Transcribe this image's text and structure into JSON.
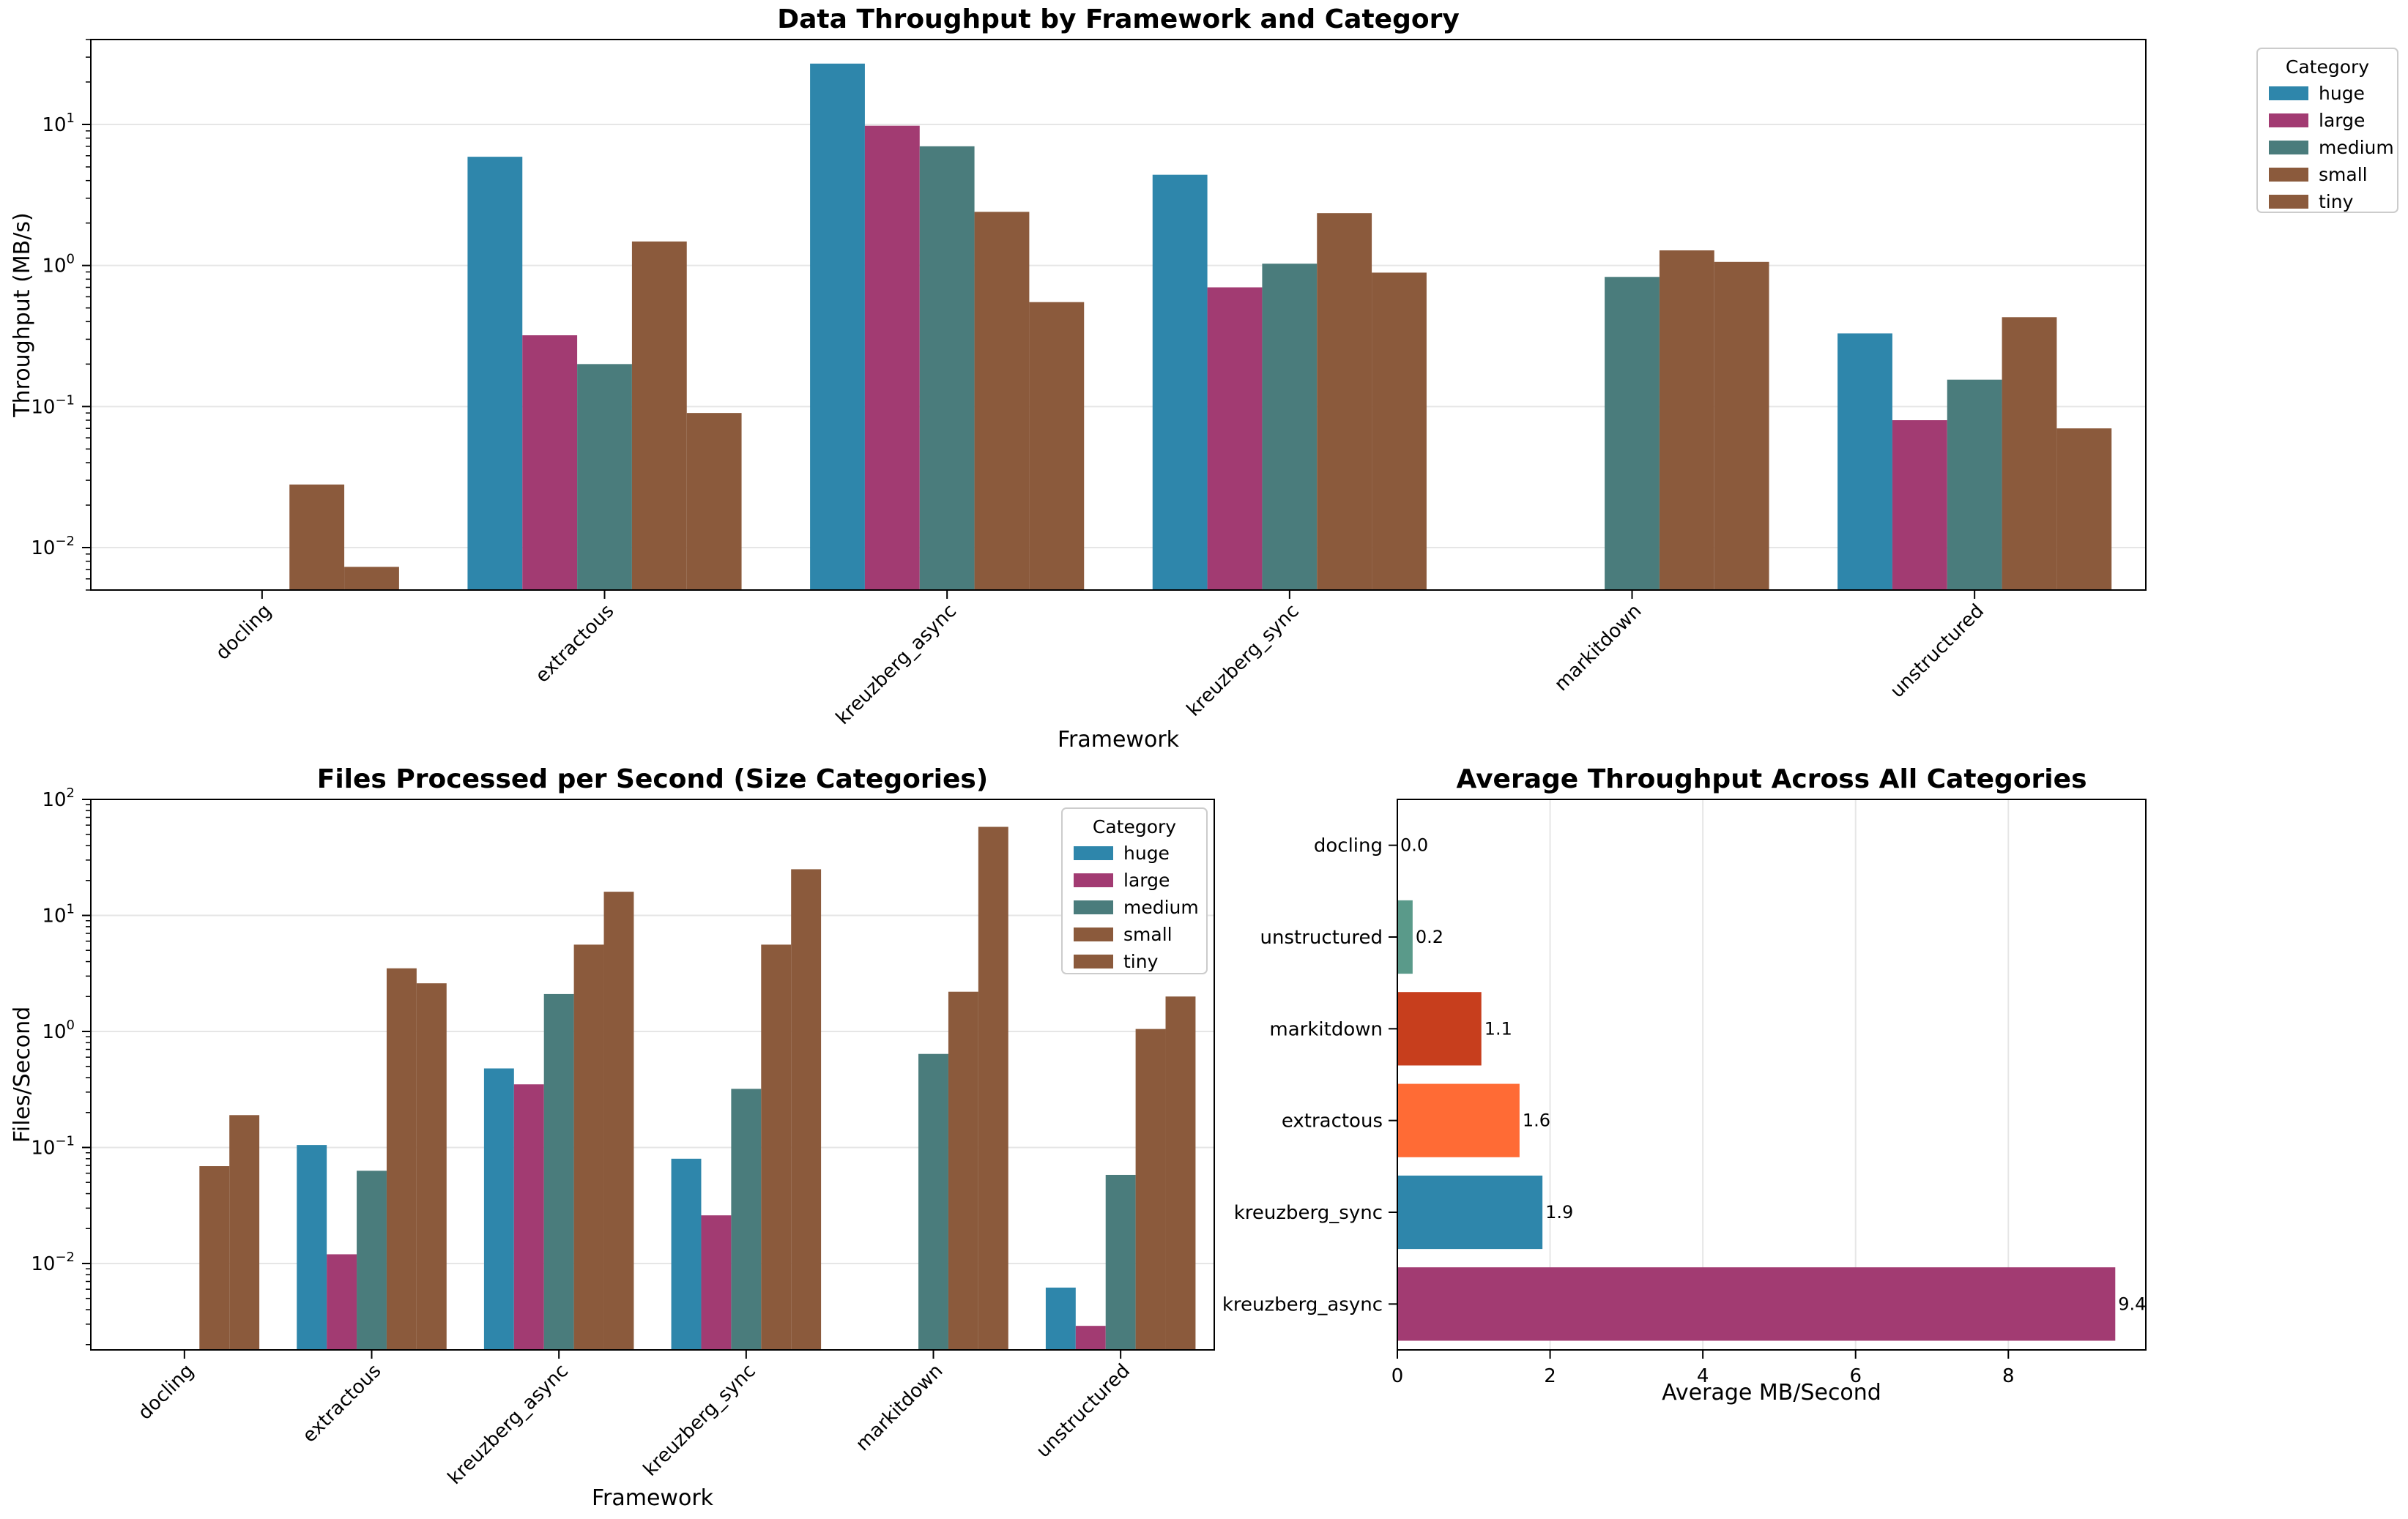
{
  "colors": {
    "huge": "#2E86AB",
    "large": "#A23B72",
    "medium": "#4A7C7C",
    "small": "#8B5A3C",
    "tiny": "#8B5A3C"
  },
  "chart_data": [
    {
      "type": "bar",
      "title": "Data Throughput by Framework and Category",
      "xlabel": "Framework",
      "ylabel": "Throughput (MB/s)",
      "yscale": "log",
      "ylim": [
        0.005,
        40
      ],
      "categories": [
        "docling",
        "extractous",
        "kreuzberg_async",
        "kreuzberg_sync",
        "markitdown",
        "unstructured"
      ],
      "legend": {
        "title": "Category",
        "placement": "outside-upper-right"
      },
      "grid": "y",
      "series": [
        {
          "name": "huge",
          "values": [
            null,
            5.9,
            27.0,
            4.4,
            null,
            0.33
          ]
        },
        {
          "name": "large",
          "values": [
            null,
            0.32,
            9.8,
            0.7,
            null,
            0.08
          ]
        },
        {
          "name": "medium",
          "values": [
            null,
            0.2,
            7.0,
            1.03,
            0.83,
            0.155
          ]
        },
        {
          "name": "small",
          "values": [
            0.028,
            1.48,
            2.4,
            2.35,
            1.28,
            0.43
          ]
        },
        {
          "name": "tiny",
          "values": [
            0.0073,
            0.09,
            0.55,
            0.89,
            1.06,
            0.07
          ]
        }
      ]
    },
    {
      "type": "bar",
      "title": "Files Processed per Second (Size Categories)",
      "xlabel": "Framework",
      "ylabel": "Files/Second",
      "yscale": "log",
      "ylim": [
        0.0018,
        100
      ],
      "categories": [
        "docling",
        "extractous",
        "kreuzberg_async",
        "kreuzberg_sync",
        "markitdown",
        "unstructured"
      ],
      "legend": {
        "title": "Category",
        "placement": "upper-right"
      },
      "grid": "y",
      "series": [
        {
          "name": "huge",
          "values": [
            null,
            0.105,
            0.48,
            0.08,
            null,
            0.0062
          ]
        },
        {
          "name": "large",
          "values": [
            null,
            0.012,
            0.35,
            0.026,
            null,
            0.0029
          ]
        },
        {
          "name": "medium",
          "values": [
            null,
            0.063,
            2.1,
            0.32,
            0.64,
            0.058
          ]
        },
        {
          "name": "small",
          "values": [
            0.069,
            3.5,
            5.6,
            5.6,
            2.2,
            1.05
          ]
        },
        {
          "name": "tiny",
          "values": [
            0.19,
            2.6,
            16.0,
            25.0,
            58.0,
            2.0
          ]
        }
      ]
    },
    {
      "type": "bar",
      "orientation": "horizontal",
      "title": "Average Throughput Across All Categories",
      "xlabel": "Average MB/Second",
      "ylabel": "",
      "xlim": [
        0,
        9.8
      ],
      "xticks": [
        0,
        2,
        4,
        6,
        8
      ],
      "grid": "x",
      "categories": [
        "docling",
        "unstructured",
        "markitdown",
        "extractous",
        "kreuzberg_sync",
        "kreuzberg_async"
      ],
      "values": [
        0.0,
        0.2,
        1.1,
        1.6,
        1.9,
        9.4
      ],
      "value_labels": [
        "0.0",
        "0.2",
        "1.1",
        "1.6",
        "1.9",
        "9.4"
      ],
      "bar_colors": [
        "#2E86AB",
        "#5A9A8A",
        "#C73E1D",
        "#FF6B35",
        "#2E86AB",
        "#A23B72"
      ]
    }
  ]
}
